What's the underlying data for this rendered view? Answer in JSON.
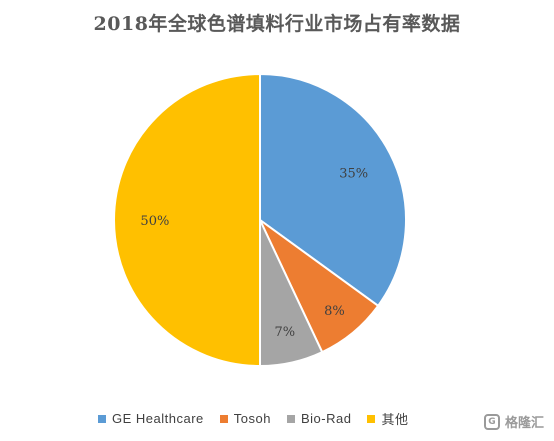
{
  "chart_data": {
    "type": "pie",
    "title": "2018年全球色谱填料行业市场占有率数据",
    "slices": [
      {
        "name": "GE Healthcare",
        "value": 35,
        "label": "35%",
        "color": "#5B9BD5"
      },
      {
        "name": "Tosoh",
        "value": 8,
        "label": "8%",
        "color": "#ED7D31"
      },
      {
        "name": "Bio-Rad",
        "value": 7,
        "label": "7%",
        "color": "#A5A5A5"
      },
      {
        "name": "其他",
        "value": 50,
        "label": "50%",
        "color": "#FFC000"
      }
    ],
    "legend_position": "bottom"
  },
  "watermark": {
    "icon": "gelonghui-logo-icon",
    "text": "格隆汇"
  }
}
